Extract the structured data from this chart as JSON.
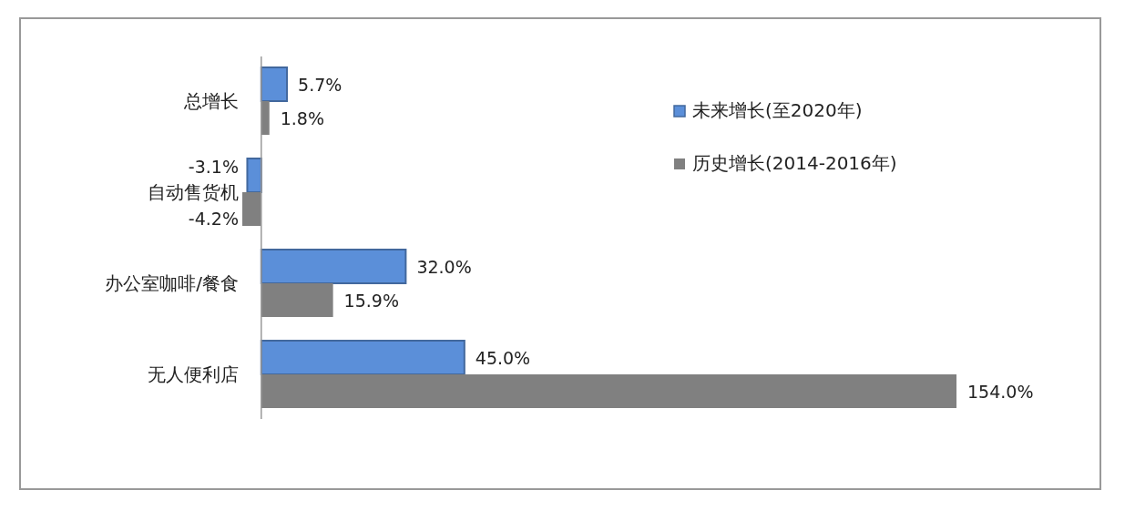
{
  "chart_data": {
    "type": "bar",
    "orientation": "horizontal",
    "categories": [
      "总增长",
      "自动售货机",
      "办公室咖啡/餐食",
      "无人便利店"
    ],
    "series": [
      {
        "name": "未来增长(至2020年)",
        "color": "#5b8fd9",
        "values": [
          5.7,
          -3.1,
          32.0,
          45.0
        ],
        "value_labels": [
          "5.7%",
          "-3.1%",
          "32.0%",
          "45.0%"
        ]
      },
      {
        "name": "历史增长(2014-2016年)",
        "color": "#808080",
        "values": [
          1.8,
          -4.2,
          15.9,
          154.0
        ],
        "value_labels": [
          "1.8%",
          "-4.2%",
          "15.9%",
          "154.0%"
        ]
      }
    ],
    "legend": "top right"
  }
}
